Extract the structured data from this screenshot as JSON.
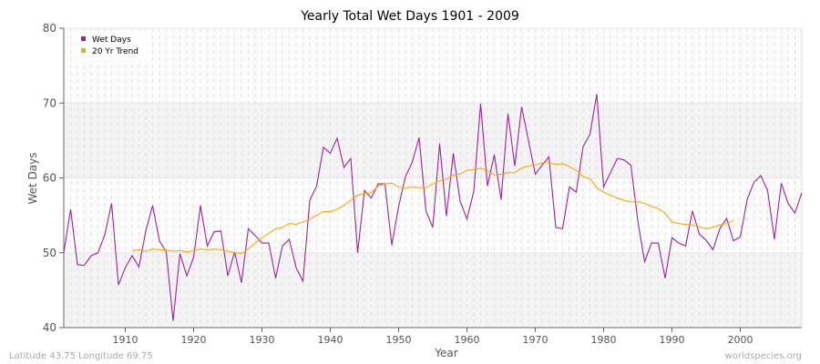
{
  "chart_data": {
    "type": "line",
    "title": "Yearly Total Wet Days 1901 - 2009",
    "xlabel": "Year",
    "ylabel": "Wet Days",
    "xlim": [
      1901,
      2009
    ],
    "ylim": [
      40,
      80
    ],
    "xticks": [
      1910,
      1920,
      1930,
      1940,
      1950,
      1960,
      1970,
      1980,
      1990,
      2000
    ],
    "yticks": [
      40,
      50,
      60,
      70,
      80
    ],
    "grid": true,
    "legend_placement": "top-left",
    "series": [
      {
        "name": "Wet Days",
        "color": "#a020a0",
        "x_start": 1901,
        "values": [
          50.0,
          55.8,
          48.4,
          48.3,
          49.6,
          50.0,
          52.4,
          56.6,
          45.7,
          48.0,
          49.6,
          48.1,
          52.9,
          56.3,
          51.6,
          50.1,
          40.9,
          49.9,
          46.9,
          49.4,
          56.3,
          50.9,
          52.8,
          52.9,
          46.9,
          50.1,
          46.0,
          53.2,
          52.3,
          51.3,
          51.3,
          46.6,
          50.9,
          51.8,
          48.0,
          46.2,
          57.0,
          58.9,
          64.1,
          63.3,
          65.3,
          61.4,
          62.6,
          50.0,
          58.3,
          57.3,
          59.2,
          59.2,
          51.0,
          56.2,
          60.2,
          62.1,
          65.4,
          55.6,
          53.4,
          64.6,
          54.9,
          63.3,
          56.9,
          54.5,
          58.2,
          69.9,
          58.9,
          63.1,
          57.1,
          68.6,
          61.6,
          69.5,
          65.0,
          60.5,
          61.7,
          62.8,
          53.4,
          53.2,
          58.8,
          58.1,
          64.2,
          65.8,
          71.2,
          58.8,
          60.7,
          62.6,
          62.4,
          61.7,
          54.3,
          48.8,
          51.3,
          51.3,
          46.6,
          52.0,
          51.3,
          50.9,
          55.6,
          52.5,
          51.7,
          50.4,
          53.2,
          54.6,
          51.6,
          52.1,
          57.1,
          59.4,
          60.3,
          58.3,
          51.8,
          59.3,
          56.6,
          55.3,
          58.0
        ]
      },
      {
        "name": "20 Yr Trend",
        "color": "#ffa500",
        "x_start": 1911,
        "values": [
          50.3,
          50.4,
          50.2,
          50.5,
          50.4,
          50.4,
          50.2,
          50.3,
          50.1,
          50.3,
          50.5,
          50.4,
          50.5,
          50.4,
          50.2,
          50.0,
          49.9,
          50.5,
          51.3,
          52.0,
          52.6,
          53.2,
          53.4,
          53.9,
          53.8,
          54.1,
          54.5,
          55.0,
          55.5,
          55.5,
          55.8,
          56.3,
          57.0,
          57.7,
          57.9,
          58.0,
          58.9,
          59.2,
          59.3,
          58.8,
          58.6,
          58.8,
          58.7,
          58.7,
          59.2,
          59.6,
          59.8,
          60.4,
          60.5,
          61.0,
          61.1,
          61.3,
          61.0,
          60.4,
          60.5,
          60.7,
          60.7,
          61.3,
          61.6,
          61.7,
          62.0,
          62.0,
          61.8,
          61.9,
          61.5,
          61.0,
          60.2,
          59.9,
          58.7,
          58.1,
          57.7,
          57.3,
          57.0,
          56.8,
          56.8,
          56.6,
          56.2,
          55.9,
          55.3,
          54.1,
          53.9,
          53.8,
          53.7,
          53.5,
          53.2,
          53.4,
          53.7,
          53.9,
          54.3
        ]
      }
    ]
  },
  "footer": {
    "location": "Latitude 43.75 Longitude 69.75",
    "credit": "worldspecies.org"
  }
}
